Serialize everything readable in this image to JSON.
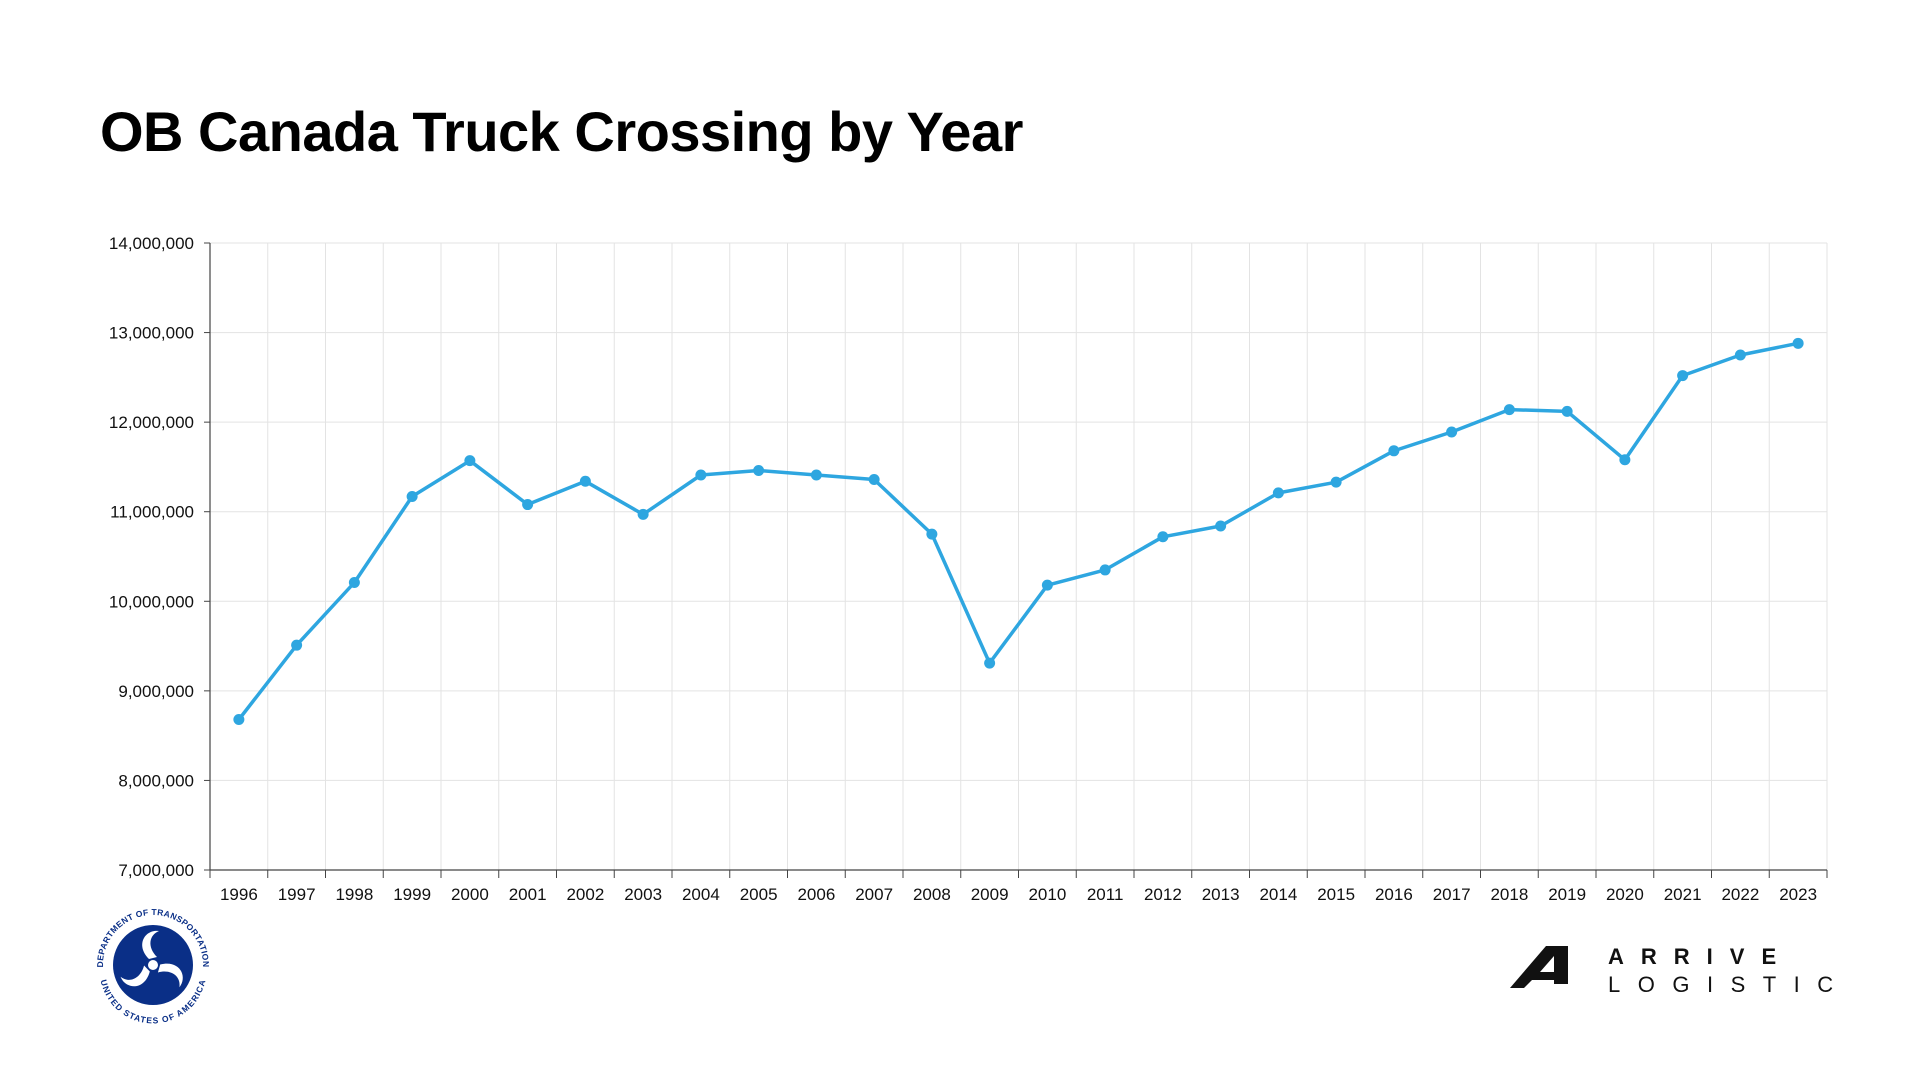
{
  "page": {
    "title": "OB Canada Truck Crossing by Year"
  },
  "chart_data": {
    "type": "line",
    "title": "OB Canada Truck Crossing by Year",
    "xlabel": "",
    "ylabel": "",
    "categories": [
      "1996",
      "1997",
      "1998",
      "1999",
      "2000",
      "2001",
      "2002",
      "2003",
      "2004",
      "2005",
      "2006",
      "2007",
      "2008",
      "2009",
      "2010",
      "2011",
      "2012",
      "2013",
      "2014",
      "2015",
      "2016",
      "2017",
      "2018",
      "2019",
      "2020",
      "2021",
      "2022",
      "2023"
    ],
    "series": [
      {
        "values": [
          8680000,
          9510000,
          10210000,
          11170000,
          11570000,
          11080000,
          11340000,
          10970000,
          11410000,
          11460000,
          11410000,
          11360000,
          10750000,
          9310000,
          10180000,
          10350000,
          10720000,
          10840000,
          11210000,
          11330000,
          11680000,
          11890000,
          12140000,
          12120000,
          11580000,
          12520000,
          12750000,
          12880000
        ]
      }
    ],
    "ylim": [
      7000000,
      14000000
    ],
    "yticks": [
      "7,000,000",
      "8,000,000",
      "9,000,000",
      "10,000,000",
      "11,000,000",
      "12,000,000",
      "13,000,000",
      "14,000,000"
    ],
    "grid": true,
    "legend": "none",
    "colors": {
      "series": "#2ea6e0",
      "grid": "#e3e3e3",
      "axis": "#444444"
    }
  },
  "logos": {
    "dot": {
      "icon": "department-of-transportation-seal-icon",
      "text_top": "DEPARTMENT OF TRANSPORTATION",
      "text_bottom": "UNITED STATES OF AMERICA",
      "color": "#0a2f87"
    },
    "arrive": {
      "icon": "arrive-logistics-logo-icon",
      "line1": "ARRIVE",
      "line2": "LOGISTICS"
    }
  }
}
